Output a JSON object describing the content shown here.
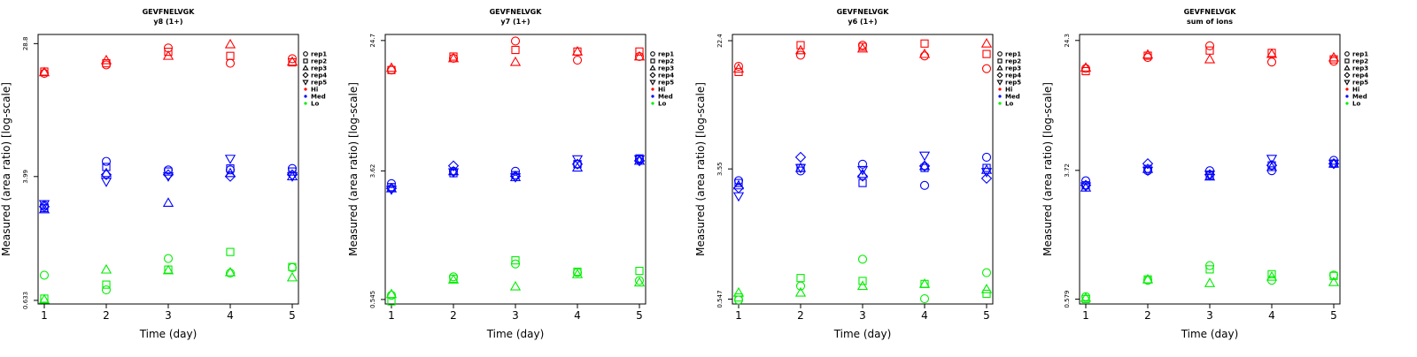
{
  "colors": {
    "Hi": "#ff0000",
    "Med": "#0000ff",
    "Lo": "#00ee00",
    "axis": "#000000"
  },
  "legend_placement": "right",
  "legend_entries": [
    {
      "label": "rep1",
      "marker": "circle"
    },
    {
      "label": "rep2",
      "marker": "square"
    },
    {
      "label": "rep3",
      "marker": "triangle-up"
    },
    {
      "label": "rep4",
      "marker": "diamond"
    },
    {
      "label": "rep5",
      "marker": "triangle-down"
    },
    {
      "label": "Hi",
      "marker": "dot",
      "color_key": "Hi"
    },
    {
      "label": "Med",
      "marker": "dot",
      "color_key": "Med"
    },
    {
      "label": "Lo",
      "marker": "dot",
      "color_key": "Lo"
    }
  ],
  "chart_data": [
    {
      "type": "scatter",
      "title": "GEVFNELVGK",
      "subtitle": "y8 (1+)",
      "xlabel": "Time (day)",
      "ylabel": "Measured (area ratio) [log-scale]",
      "y_scale": "log",
      "x_ticks": [
        1,
        2,
        3,
        4,
        5
      ],
      "y_ticks": [
        0.633,
        3.99,
        28.8
      ],
      "y_tick_labels": [
        "0.633",
        "3.99",
        "28.8"
      ],
      "ylim": [
        0.6,
        33
      ],
      "series": [
        {
          "group": "Hi",
          "marker": "circle",
          "x": [
            1,
            2,
            3,
            4,
            5
          ],
          "y": [
            18.5,
            21.0,
            27.0,
            21.5,
            23.0
          ]
        },
        {
          "group": "Hi",
          "marker": "square",
          "x": [
            1,
            2,
            3,
            4,
            5
          ],
          "y": [
            19.0,
            21.5,
            25.5,
            24.0,
            21.8
          ]
        },
        {
          "group": "Hi",
          "marker": "triangle-up",
          "x": [
            1,
            2,
            3,
            4,
            5
          ],
          "y": [
            18.8,
            22.5,
            24.0,
            28.5,
            22.0
          ]
        },
        {
          "group": "Med",
          "marker": "circle",
          "x": [
            1,
            2,
            3,
            4,
            5
          ],
          "y": [
            2.6,
            5.0,
            4.4,
            4.4,
            4.5
          ]
        },
        {
          "group": "Med",
          "marker": "square",
          "x": [
            1,
            2,
            3,
            4,
            5
          ],
          "y": [
            2.5,
            4.6,
            4.3,
            4.5,
            4.3
          ]
        },
        {
          "group": "Med",
          "marker": "triangle-up",
          "x": [
            1,
            2,
            3,
            4,
            5
          ],
          "y": [
            2.45,
            4.2,
            2.7,
            4.2,
            4.0
          ]
        },
        {
          "group": "Med",
          "marker": "diamond",
          "x": [
            1,
            2,
            3,
            4,
            5
          ],
          "y": [
            2.55,
            4.1,
            4.1,
            4.0,
            4.1
          ]
        },
        {
          "group": "Med",
          "marker": "triangle-down",
          "x": [
            1,
            2,
            3,
            4,
            5
          ],
          "y": [
            2.65,
            3.7,
            4.0,
            5.2,
            4.0
          ]
        },
        {
          "group": "Lo",
          "marker": "circle",
          "x": [
            1,
            2,
            3,
            4,
            5
          ],
          "y": [
            0.92,
            0.74,
            1.18,
            0.95,
            1.03
          ]
        },
        {
          "group": "Lo",
          "marker": "square",
          "x": [
            1,
            2,
            3,
            4,
            5
          ],
          "y": [
            0.65,
            0.8,
            1.0,
            1.3,
            1.04
          ]
        },
        {
          "group": "Lo",
          "marker": "triangle-up",
          "x": [
            1,
            2,
            3,
            4,
            5
          ],
          "y": [
            0.64,
            1.0,
            0.99,
            0.96,
            0.89
          ]
        }
      ]
    },
    {
      "type": "scatter",
      "title": "GEVFNELVGK",
      "subtitle": "y7 (1+)",
      "xlabel": "Time (day)",
      "ylabel": "Measured (area ratio) [log-scale]",
      "y_scale": "log",
      "x_ticks": [
        1,
        2,
        3,
        4,
        5
      ],
      "y_ticks": [
        0.545,
        3.62,
        24.7
      ],
      "y_tick_labels": [
        "0.545",
        "3.62",
        "24.7"
      ],
      "ylim": [
        0.51,
        27
      ],
      "series": [
        {
          "group": "Hi",
          "marker": "circle",
          "x": [
            1,
            2,
            3,
            4,
            5
          ],
          "y": [
            16.0,
            19.0,
            24.5,
            18.5,
            19.5
          ]
        },
        {
          "group": "Hi",
          "marker": "square",
          "x": [
            1,
            2,
            3,
            4,
            5
          ],
          "y": [
            16.0,
            19.5,
            21.5,
            21.0,
            21.0
          ]
        },
        {
          "group": "Hi",
          "marker": "triangle-up",
          "x": [
            1,
            2,
            3,
            4,
            5
          ],
          "y": [
            16.5,
            19.0,
            18.0,
            21.0,
            19.5
          ]
        },
        {
          "group": "Med",
          "marker": "circle",
          "x": [
            1,
            2,
            3,
            4,
            5
          ],
          "y": [
            3.0,
            3.6,
            3.6,
            4.0,
            4.3
          ]
        },
        {
          "group": "Med",
          "marker": "square",
          "x": [
            1,
            2,
            3,
            4,
            5
          ],
          "y": [
            2.85,
            3.5,
            3.4,
            4.0,
            4.35
          ]
        },
        {
          "group": "Med",
          "marker": "triangle-up",
          "x": [
            1,
            2,
            3,
            4,
            5
          ],
          "y": [
            2.8,
            3.6,
            3.3,
            3.8,
            4.2
          ]
        },
        {
          "group": "Med",
          "marker": "diamond",
          "x": [
            1,
            2,
            3,
            4,
            5
          ],
          "y": [
            2.8,
            3.9,
            3.35,
            4.0,
            4.2
          ]
        },
        {
          "group": "Med",
          "marker": "triangle-down",
          "x": [
            1,
            2,
            3,
            4,
            5
          ],
          "y": [
            2.75,
            3.55,
            3.3,
            4.3,
            4.3
          ]
        },
        {
          "group": "Lo",
          "marker": "circle",
          "x": [
            1,
            2,
            3,
            4,
            5
          ],
          "y": [
            0.58,
            0.76,
            0.92,
            0.81,
            0.72
          ]
        },
        {
          "group": "Lo",
          "marker": "square",
          "x": [
            1,
            2,
            3,
            4,
            5
          ],
          "y": [
            0.53,
            0.74,
            0.97,
            0.82,
            0.83
          ]
        },
        {
          "group": "Lo",
          "marker": "triangle-up",
          "x": [
            1,
            2,
            3,
            4,
            5
          ],
          "y": [
            0.59,
            0.73,
            0.66,
            0.79,
            0.7
          ]
        }
      ]
    },
    {
      "type": "scatter",
      "title": "GEVFNELVGK",
      "subtitle": "y6 (1+)",
      "xlabel": "Time (day)",
      "ylabel": "Measured (area ratio) [log-scale]",
      "y_scale": "log",
      "x_ticks": [
        1,
        2,
        3,
        4,
        5
      ],
      "y_ticks": [
        0.547,
        3.55,
        22.4
      ],
      "y_tick_labels": [
        "0.547",
        "3.55",
        "22.4"
      ],
      "ylim": [
        0.51,
        24.5
      ],
      "series": [
        {
          "group": "Hi",
          "marker": "circle",
          "x": [
            1,
            2,
            3,
            4,
            5
          ],
          "y": [
            15.5,
            18.2,
            21.0,
            18.0,
            15.0
          ]
        },
        {
          "group": "Hi",
          "marker": "square",
          "x": [
            1,
            2,
            3,
            4,
            5
          ],
          "y": [
            14.3,
            21.0,
            20.5,
            21.5,
            18.5
          ]
        },
        {
          "group": "Hi",
          "marker": "triangle-up",
          "x": [
            1,
            2,
            3,
            4,
            5
          ],
          "y": [
            15.0,
            19.5,
            20.0,
            18.5,
            21.5
          ]
        },
        {
          "group": "Med",
          "marker": "circle",
          "x": [
            1,
            2,
            3,
            4,
            5
          ],
          "y": [
            3.0,
            3.45,
            3.8,
            2.8,
            4.2
          ]
        },
        {
          "group": "Med",
          "marker": "square",
          "x": [
            1,
            2,
            3,
            4,
            5
          ],
          "y": [
            2.9,
            3.6,
            2.9,
            3.6,
            3.6
          ]
        },
        {
          "group": "Med",
          "marker": "triangle-up",
          "x": [
            1,
            2,
            3,
            4,
            5
          ],
          "y": [
            2.8,
            3.6,
            3.3,
            3.7,
            3.5
          ]
        },
        {
          "group": "Med",
          "marker": "diamond",
          "x": [
            1,
            2,
            3,
            4,
            5
          ],
          "y": [
            2.7,
            4.2,
            3.2,
            3.7,
            3.1
          ]
        },
        {
          "group": "Med",
          "marker": "triangle-down",
          "x": [
            1,
            2,
            3,
            4,
            5
          ],
          "y": [
            2.4,
            3.6,
            3.5,
            4.3,
            3.4
          ]
        },
        {
          "group": "Lo",
          "marker": "circle",
          "x": [
            1,
            2,
            3,
            4,
            5
          ],
          "y": [
            0.54,
            0.66,
            0.97,
            0.55,
            0.8
          ]
        },
        {
          "group": "Lo",
          "marker": "square",
          "x": [
            1,
            2,
            3,
            4,
            5
          ],
          "y": [
            0.56,
            0.74,
            0.71,
            0.68,
            0.59
          ]
        },
        {
          "group": "Lo",
          "marker": "triangle-up",
          "x": [
            1,
            2,
            3,
            4,
            5
          ],
          "y": [
            0.6,
            0.6,
            0.66,
            0.68,
            0.63
          ]
        }
      ]
    },
    {
      "type": "scatter",
      "title": "GEVFNELVGK",
      "subtitle": "sum of ions",
      "xlabel": "Time (day)",
      "ylabel": "Measured (area ratio) [log-scale]",
      "y_scale": "log",
      "x_ticks": [
        1,
        2,
        3,
        4,
        5
      ],
      "y_ticks": [
        0.579,
        3.72,
        24.3
      ],
      "y_tick_labels": [
        "0.579",
        "3.72",
        "24.3"
      ],
      "ylim": [
        0.54,
        26.5
      ],
      "series": [
        {
          "group": "Hi",
          "marker": "circle",
          "x": [
            1,
            2,
            3,
            4,
            5
          ],
          "y": [
            16.2,
            19.0,
            22.5,
            17.8,
            18.0
          ]
        },
        {
          "group": "Hi",
          "marker": "square",
          "x": [
            1,
            2,
            3,
            4,
            5
          ],
          "y": [
            15.6,
            19.5,
            21.0,
            20.3,
            18.5
          ]
        },
        {
          "group": "Hi",
          "marker": "triangle-up",
          "x": [
            1,
            2,
            3,
            4,
            5
          ],
          "y": [
            16.4,
            19.8,
            18.5,
            20.0,
            19.0
          ]
        },
        {
          "group": "Med",
          "marker": "circle",
          "x": [
            1,
            2,
            3,
            4,
            5
          ],
          "y": [
            3.2,
            3.7,
            3.7,
            3.7,
            4.3
          ]
        },
        {
          "group": "Med",
          "marker": "square",
          "x": [
            1,
            2,
            3,
            4,
            5
          ],
          "y": [
            3.0,
            3.8,
            3.45,
            4.0,
            4.1
          ]
        },
        {
          "group": "Med",
          "marker": "triangle-up",
          "x": [
            1,
            2,
            3,
            4,
            5
          ],
          "y": [
            2.9,
            3.8,
            3.4,
            3.9,
            4.1
          ]
        },
        {
          "group": "Med",
          "marker": "diamond",
          "x": [
            1,
            2,
            3,
            4,
            5
          ],
          "y": [
            3.0,
            4.1,
            3.5,
            4.0,
            4.1
          ]
        },
        {
          "group": "Med",
          "marker": "triangle-down",
          "x": [
            1,
            2,
            3,
            4,
            5
          ],
          "y": [
            2.95,
            3.7,
            3.5,
            4.4,
            4.1
          ]
        },
        {
          "group": "Lo",
          "marker": "circle",
          "x": [
            1,
            2,
            3,
            4,
            5
          ],
          "y": [
            0.6,
            0.76,
            0.94,
            0.76,
            0.82
          ]
        },
        {
          "group": "Lo",
          "marker": "square",
          "x": [
            1,
            2,
            3,
            4,
            5
          ],
          "y": [
            0.58,
            0.77,
            0.89,
            0.83,
            0.81
          ]
        },
        {
          "group": "Lo",
          "marker": "triangle-up",
          "x": [
            1,
            2,
            3,
            4,
            5
          ],
          "y": [
            0.59,
            0.77,
            0.73,
            0.8,
            0.74
          ]
        }
      ]
    }
  ]
}
